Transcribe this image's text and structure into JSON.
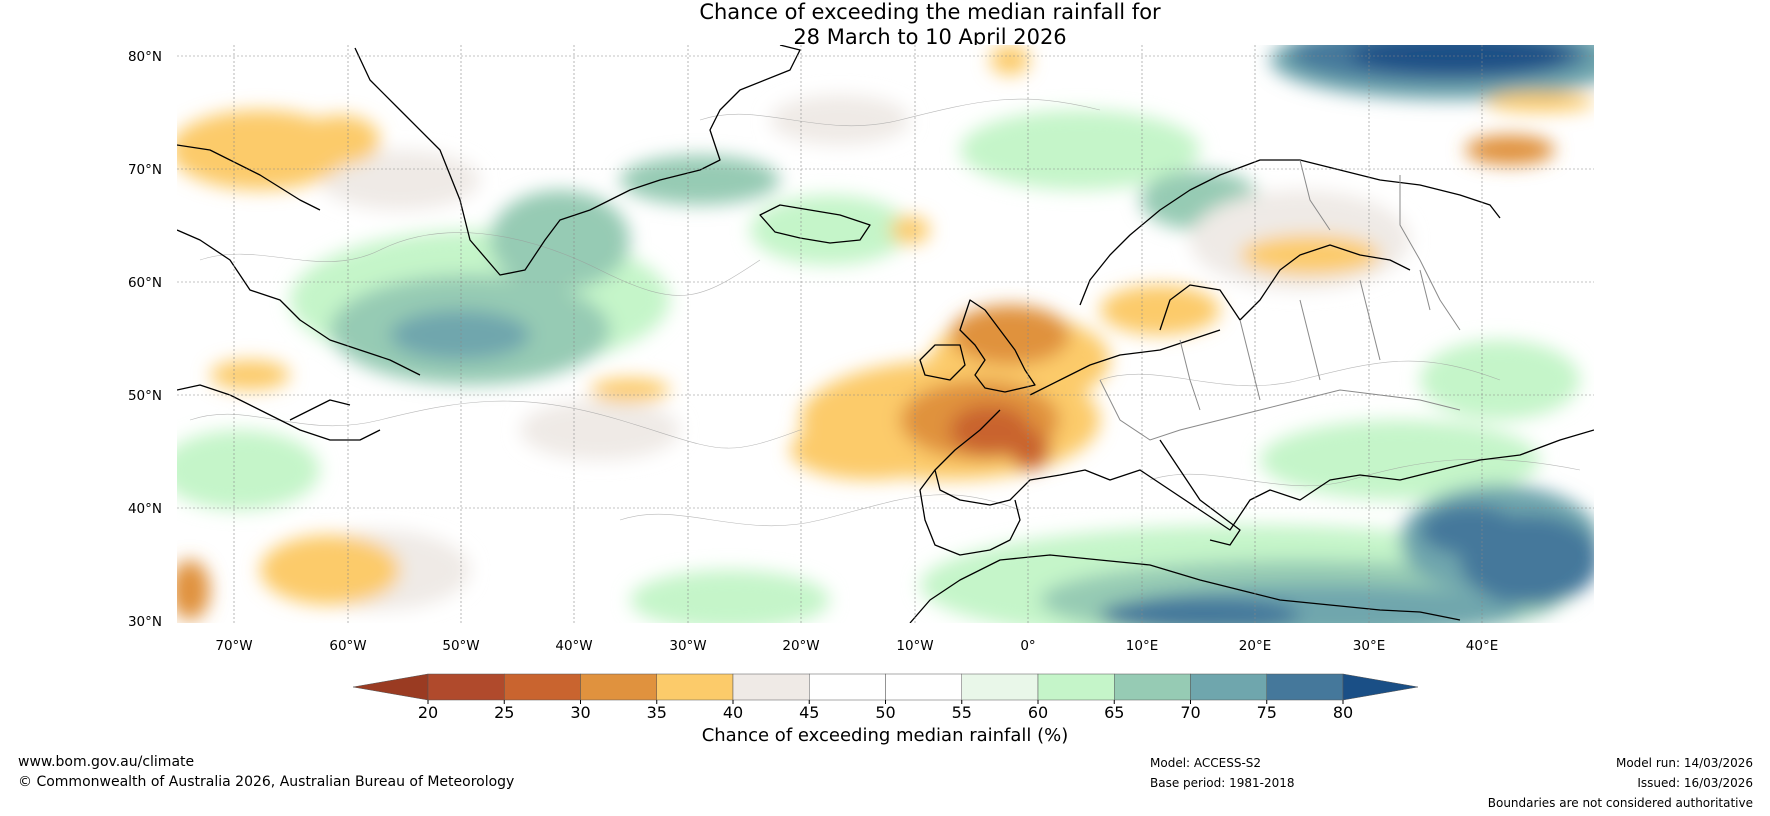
{
  "title": {
    "line1": "Chance of exceeding the median rainfall for",
    "line2": "28 March to 10 April 2026"
  },
  "axes": {
    "lat_labels": [
      "80°N",
      "70°N",
      "60°N",
      "50°N",
      "40°N",
      "30°N"
    ],
    "lon_labels": [
      "70°W",
      "60°W",
      "50°W",
      "40°W",
      "30°W",
      "20°W",
      "10°W",
      "0°",
      "10°E",
      "20°E",
      "30°E",
      "40°E"
    ]
  },
  "colorbar": {
    "ticks": [
      "20",
      "25",
      "30",
      "35",
      "40",
      "45",
      "50",
      "55",
      "60",
      "65",
      "70",
      "75",
      "80"
    ],
    "colors": [
      "#b04a2c",
      "#c9642f",
      "#e0923e",
      "#fccb6a",
      "#efeae6",
      "#ffffff",
      "#ffffff",
      "#e9f7e9",
      "#c5f5c9",
      "#96cbb4",
      "#6fa6ad",
      "#45789b"
    ],
    "under_color": "#9a3b22",
    "over_color": "#1a4f86",
    "label": "Chance of exceeding median rainfall (%)"
  },
  "footer": {
    "url": "www.bom.gov.au/climate",
    "copyright": "© Commonwealth of Australia 2026, Australian Bureau of Meteorology",
    "model": "Model: ACCESS-S2",
    "base_period": "Base period: 1981-2018",
    "model_run": "Model run: 14/03/2026",
    "issued": "Issued: 16/03/2026",
    "disclaimer": "Boundaries are not considered authoritative"
  }
}
